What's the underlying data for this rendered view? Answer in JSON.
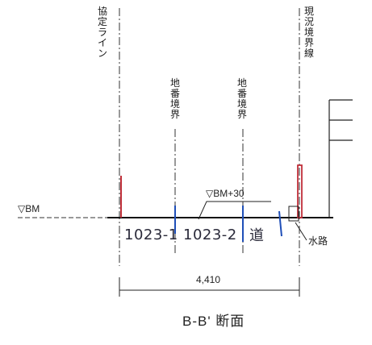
{
  "labels": {
    "kyotei_line": "協定ライン",
    "chiban_kyokai_1": "地番境界",
    "chiban_kyokai_2": "地番境界",
    "genkyo_kyokai": "現況境界線",
    "bm": "▽BM",
    "bm_plus": "▽BM+30",
    "lot_1": "1023-1",
    "lot_2": "1023-2",
    "road": "道",
    "waterway": "水路",
    "dimension": "4,410",
    "section_title": "B-B' 断面"
  },
  "colors": {
    "line": "#222222",
    "red": "#c0303a",
    "blue": "#1f4fb8",
    "hand": "#2a2a3a"
  }
}
